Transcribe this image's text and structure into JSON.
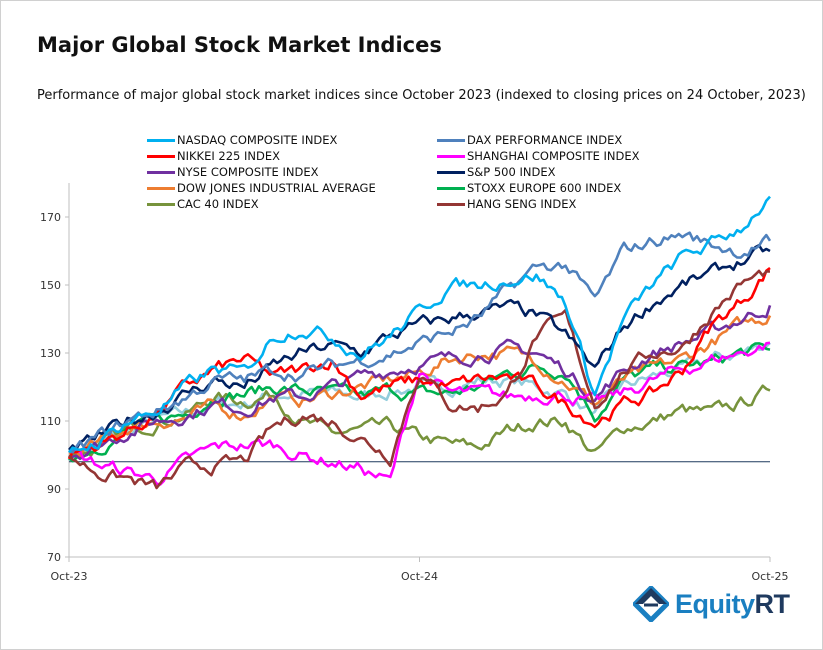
{
  "title": "Major Global Stock Market Indices",
  "subtitle": "Performance of major global stock market indices since October 2023 (indexed to closing prices on 24 October, 2023)",
  "brand": {
    "name_part1": "Equity",
    "name_part2": "RT",
    "color": "#1a7fc1"
  },
  "chart_data": {
    "type": "line",
    "x_ticks": [
      "Oct-23",
      "Oct-24",
      "Oct-25"
    ],
    "x": [
      "Oct-23",
      "Nov-23",
      "Dec-23",
      "Jan-24",
      "Feb-24",
      "Mar-24",
      "Apr-24",
      "May-24",
      "Jun-24",
      "Jul-24",
      "Aug-24",
      "Sep-24",
      "Oct-24",
      "Nov-24",
      "Dec-24",
      "Jan-25",
      "Feb-25",
      "Mar-25",
      "Apr-25",
      "May-25",
      "Jun-25",
      "Jul-25",
      "Aug-25",
      "Sep-25",
      "Oct-25"
    ],
    "y_ticks": [
      70,
      90,
      110,
      130,
      150,
      170
    ],
    "ylim": [
      70,
      180
    ],
    "reference_line": 98,
    "grid": false,
    "legend_placement": "top",
    "series": [
      {
        "name": "NASDAQ COMPOSITE INDEX",
        "color": "#00b0f0",
        "values": [
          100,
          104,
          110,
          113,
          120,
          125,
          124,
          135,
          138,
          135,
          130,
          135,
          142,
          150,
          150,
          152,
          153,
          145,
          118,
          140,
          150,
          158,
          162,
          167,
          176
        ]
      },
      {
        "name": "DAX PERFORMANCE INDEX",
        "color": "#4f81bd",
        "values": [
          100,
          105,
          110,
          113,
          117,
          122,
          122,
          125,
          124,
          126,
          128,
          130,
          133,
          136,
          140,
          148,
          155,
          156,
          145,
          160,
          163,
          165,
          162,
          160,
          163
        ]
      },
      {
        "name": "NIKKEI 225 INDEX",
        "color": "#ff0000",
        "values": [
          100,
          103,
          107,
          112,
          120,
          125,
          128,
          123,
          125,
          128,
          118,
          120,
          122,
          120,
          122,
          123,
          120,
          115,
          110,
          115,
          118,
          125,
          138,
          145,
          155
        ]
      },
      {
        "name": "SHANGHAI COMPOSITE INDEX",
        "color": "#ff00ff",
        "values": [
          100,
          97,
          95,
          93,
          98,
          102,
          103,
          103,
          100,
          98,
          96,
          92,
          125,
          118,
          118,
          117,
          118,
          118,
          115,
          118,
          122,
          125,
          128,
          130,
          133
        ]
      },
      {
        "name": "NYSE COMPOSITE INDEX",
        "color": "#7030a0",
        "values": [
          100,
          103,
          107,
          110,
          112,
          115,
          114,
          117,
          117,
          120,
          123,
          125,
          127,
          128,
          130,
          131,
          130,
          125,
          117,
          125,
          130,
          133,
          136,
          140,
          144
        ]
      },
      {
        "name": "S&P 500 INDEX",
        "color": "#002060",
        "values": [
          100,
          105,
          110,
          113,
          118,
          122,
          120,
          126,
          130,
          132,
          130,
          135,
          138,
          140,
          142,
          143,
          141,
          135,
          125,
          138,
          145,
          150,
          153,
          157,
          160
        ]
      },
      {
        "name": "DOW JONES INDUSTRIAL AVERAGE",
        "color": "#ed7d31",
        "values": [
          100,
          103,
          108,
          110,
          111,
          114,
          112,
          117,
          116,
          118,
          120,
          122,
          124,
          128,
          130,
          130,
          128,
          122,
          115,
          122,
          125,
          128,
          133,
          138,
          141
        ]
      },
      {
        "name": "STOXX EUROPE 600 INDEX",
        "color": "#00b050",
        "values": [
          100,
          103,
          107,
          110,
          112,
          118,
          118,
          120,
          119,
          118,
          117,
          119,
          118,
          118,
          120,
          124,
          126,
          125,
          112,
          122,
          125,
          126,
          127,
          130,
          131
        ]
      },
      {
        "name": "CAC 40 INDEX",
        "color": "#77933c",
        "values": [
          100,
          102,
          107,
          110,
          112,
          117,
          116,
          118,
          110,
          106,
          107,
          108,
          105,
          103,
          102,
          107,
          110,
          110,
          100,
          108,
          110,
          113,
          112,
          115,
          119
        ]
      },
      {
        "name": "HANG SENG INDEX",
        "color": "#943634",
        "values": [
          100,
          95,
          93,
          90,
          96,
          97,
          98,
          108,
          112,
          110,
          105,
          100,
          125,
          115,
          114,
          118,
          135,
          140,
          115,
          125,
          130,
          132,
          142,
          150,
          154
        ]
      },
      {
        "color": "#92cddc",
        "values": [
          100,
          103,
          106,
          110,
          112,
          115,
          115,
          118,
          118,
          118,
          117,
          119,
          120,
          120,
          122,
          122,
          120,
          118,
          112,
          120,
          123,
          125,
          128,
          130,
          133
        ]
      }
    ]
  }
}
